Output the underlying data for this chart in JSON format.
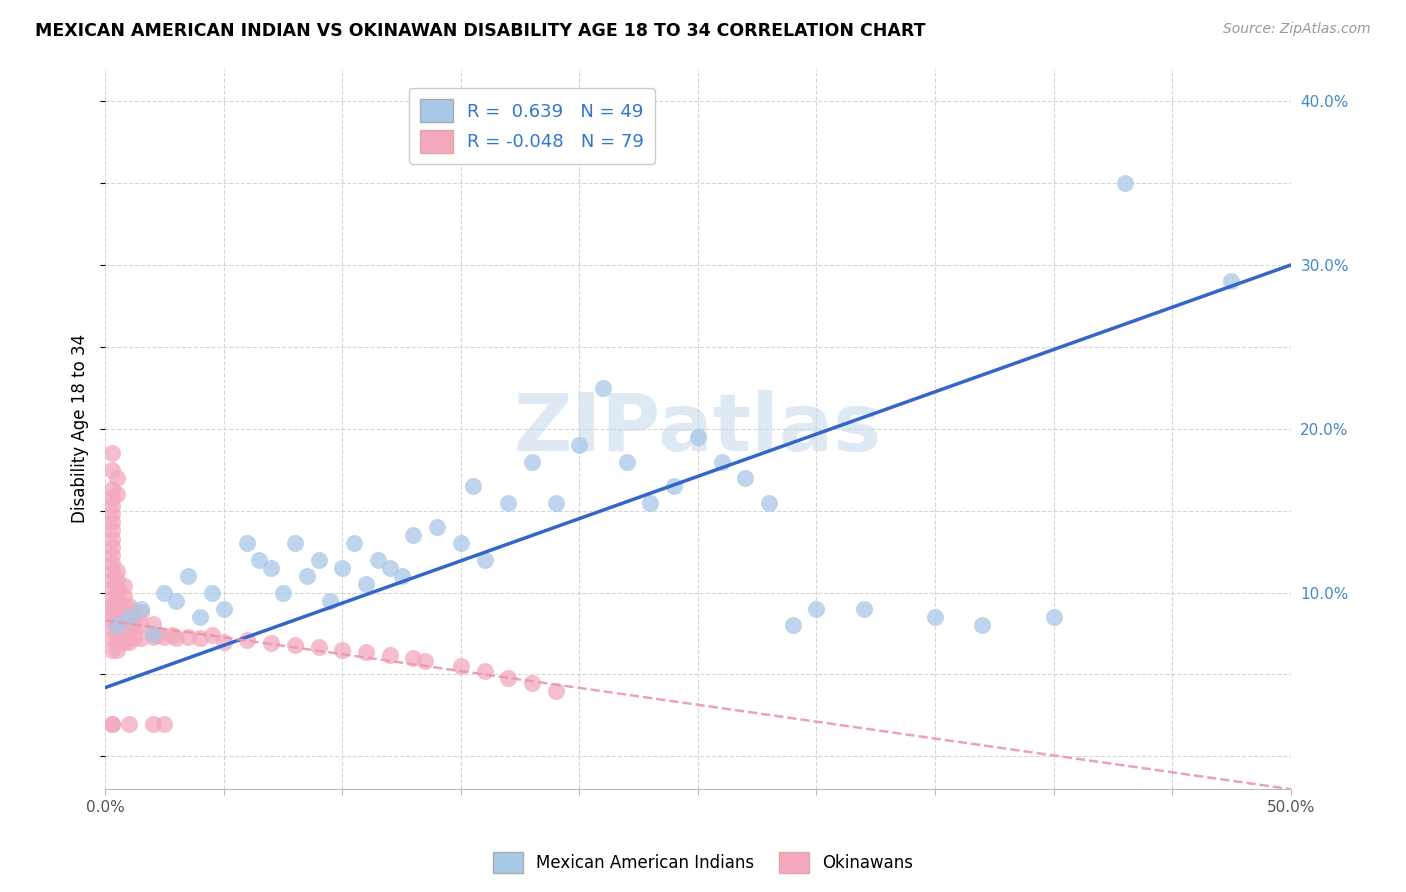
{
  "title": "MEXICAN AMERICAN INDIAN VS OKINAWAN DISABILITY AGE 18 TO 34 CORRELATION CHART",
  "source": "Source: ZipAtlas.com",
  "ylabel": "Disability Age 18 to 34",
  "xlim": [
    0.0,
    0.5
  ],
  "ylim": [
    -0.02,
    0.42
  ],
  "plot_ylim": [
    0.0,
    0.42
  ],
  "xticks": [
    0.0,
    0.05,
    0.1,
    0.15,
    0.2,
    0.25,
    0.3,
    0.35,
    0.4,
    0.45,
    0.5
  ],
  "yticks": [
    0.0,
    0.05,
    0.1,
    0.15,
    0.2,
    0.25,
    0.3,
    0.35,
    0.4
  ],
  "xticklabels": [
    "0.0%",
    "",
    "",
    "",
    "",
    "",
    "",
    "",
    "",
    "",
    "50.0%"
  ],
  "yticklabels_right": [
    "",
    "",
    "10.0%",
    "",
    "20.0%",
    "",
    "30.0%",
    "",
    "40.0%"
  ],
  "blue_R": 0.639,
  "blue_N": 49,
  "pink_R": -0.048,
  "pink_N": 79,
  "blue_color": "#A8C8E8",
  "pink_color": "#F4A8BC",
  "blue_line_color": "#3366CC",
  "pink_line_color": "#E899AA",
  "grid_color": "#CCCCCC",
  "watermark": "ZIPatlas",
  "legend_label_blue": "Mexican American Indians",
  "legend_label_pink": "Okinawans",
  "blue_scatter_x": [
    0.005,
    0.01,
    0.015,
    0.02,
    0.025,
    0.03,
    0.035,
    0.04,
    0.045,
    0.05,
    0.06,
    0.065,
    0.07,
    0.075,
    0.08,
    0.085,
    0.09,
    0.095,
    0.1,
    0.105,
    0.11,
    0.115,
    0.12,
    0.125,
    0.13,
    0.14,
    0.15,
    0.155,
    0.16,
    0.17,
    0.18,
    0.19,
    0.2,
    0.21,
    0.22,
    0.23,
    0.24,
    0.25,
    0.26,
    0.27,
    0.28,
    0.29,
    0.3,
    0.32,
    0.35,
    0.37,
    0.4,
    0.43,
    0.475
  ],
  "blue_scatter_y": [
    0.08,
    0.085,
    0.09,
    0.075,
    0.1,
    0.095,
    0.11,
    0.085,
    0.1,
    0.09,
    0.13,
    0.12,
    0.115,
    0.1,
    0.13,
    0.11,
    0.12,
    0.095,
    0.115,
    0.13,
    0.105,
    0.12,
    0.115,
    0.11,
    0.135,
    0.14,
    0.13,
    0.165,
    0.12,
    0.155,
    0.18,
    0.155,
    0.19,
    0.225,
    0.18,
    0.155,
    0.165,
    0.195,
    0.18,
    0.17,
    0.155,
    0.08,
    0.09,
    0.09,
    0.085,
    0.08,
    0.085,
    0.35,
    0.29
  ],
  "pink_scatter_x": [
    0.003,
    0.003,
    0.003,
    0.003,
    0.003,
    0.003,
    0.003,
    0.003,
    0.003,
    0.003,
    0.003,
    0.003,
    0.003,
    0.003,
    0.003,
    0.003,
    0.003,
    0.003,
    0.003,
    0.003,
    0.005,
    0.005,
    0.005,
    0.005,
    0.005,
    0.005,
    0.005,
    0.005,
    0.005,
    0.005,
    0.008,
    0.008,
    0.008,
    0.008,
    0.008,
    0.008,
    0.01,
    0.01,
    0.01,
    0.01,
    0.012,
    0.012,
    0.012,
    0.015,
    0.015,
    0.015,
    0.02,
    0.02,
    0.022,
    0.025,
    0.028,
    0.03,
    0.035,
    0.04,
    0.045,
    0.05,
    0.06,
    0.07,
    0.08,
    0.09,
    0.1,
    0.11,
    0.12,
    0.13,
    0.135,
    0.15,
    0.16,
    0.17,
    0.18,
    0.19,
    0.003,
    0.003,
    0.003,
    0.003,
    0.005,
    0.005,
    0.01,
    0.02,
    0.025
  ],
  "pink_scatter_y": [
    0.065,
    0.072,
    0.078,
    0.083,
    0.088,
    0.092,
    0.097,
    0.103,
    0.108,
    0.113,
    0.118,
    0.123,
    0.128,
    0.133,
    0.138,
    0.143,
    0.148,
    0.153,
    0.158,
    0.163,
    0.065,
    0.072,
    0.078,
    0.083,
    0.088,
    0.093,
    0.098,
    0.103,
    0.108,
    0.113,
    0.07,
    0.078,
    0.085,
    0.092,
    0.098,
    0.104,
    0.07,
    0.078,
    0.085,
    0.092,
    0.072,
    0.08,
    0.088,
    0.072,
    0.08,
    0.088,
    0.073,
    0.081,
    0.074,
    0.073,
    0.074,
    0.072,
    0.073,
    0.072,
    0.074,
    0.07,
    0.071,
    0.069,
    0.068,
    0.067,
    0.065,
    0.064,
    0.062,
    0.06,
    0.058,
    0.055,
    0.052,
    0.048,
    0.045,
    0.04,
    0.175,
    0.185,
    0.02,
    0.02,
    0.17,
    0.16,
    0.02,
    0.02,
    0.02
  ],
  "blue_line_x0": 0.0,
  "blue_line_y0": 0.042,
  "blue_line_x1": 0.5,
  "blue_line_y1": 0.3,
  "pink_line_x0": 0.0,
  "pink_line_y0": 0.083,
  "pink_line_x1": 0.5,
  "pink_line_y1": -0.02
}
